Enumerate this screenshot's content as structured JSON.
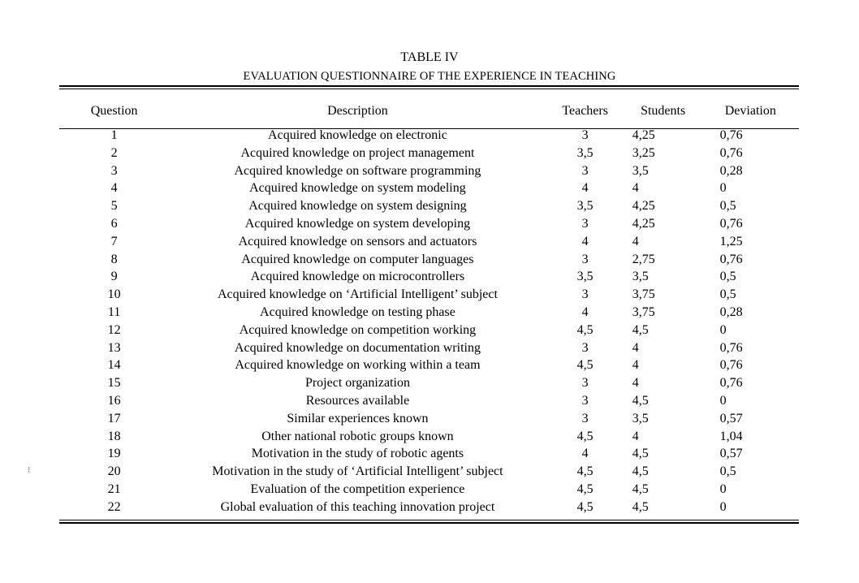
{
  "table_number": "TABLE IV",
  "table_title": "EVALUATION QUESTIONNAIRE OF THE EXPERIENCE IN TEACHING",
  "columns": [
    "Question",
    "Description",
    "Teachers",
    "Students",
    "Deviation"
  ],
  "rows": [
    [
      "1",
      "Acquired knowledge on electronic",
      "3",
      "4,25",
      "0,76"
    ],
    [
      "2",
      "Acquired knowledge on project management",
      "3,5",
      "3,25",
      "0,76"
    ],
    [
      "3",
      "Acquired knowledge on software programming",
      "3",
      "3,5",
      "0,28"
    ],
    [
      "4",
      "Acquired knowledge on system modeling",
      "4",
      "4",
      "0"
    ],
    [
      "5",
      "Acquired knowledge on system designing",
      "3,5",
      "4,25",
      "0,5"
    ],
    [
      "6",
      "Acquired knowledge on system developing",
      "3",
      "4,25",
      "0,76"
    ],
    [
      "7",
      "Acquired knowledge on sensors and actuators",
      "4",
      "4",
      "1,25"
    ],
    [
      "8",
      "Acquired knowledge on computer languages",
      "3",
      "2,75",
      "0,76"
    ],
    [
      "9",
      "Acquired knowledge on microcontrollers",
      "3,5",
      "3,5",
      "0,5"
    ],
    [
      "10",
      "Acquired knowledge on ‘Artificial Intelligent’ subject",
      "3",
      "3,75",
      "0,5"
    ],
    [
      "11",
      "Acquired knowledge on testing phase",
      "4",
      "3,75",
      "0,28"
    ],
    [
      "12",
      "Acquired knowledge on competition working",
      "4,5",
      "4,5",
      "0"
    ],
    [
      "13",
      "Acquired knowledge on documentation writing",
      "3",
      "4",
      "0,76"
    ],
    [
      "14",
      "Acquired knowledge on working within a team",
      "4,5",
      "4",
      "0,76"
    ],
    [
      "15",
      "Project organization",
      "3",
      "4",
      "0,76"
    ],
    [
      "16",
      "Resources available",
      "3",
      "4,5",
      "0"
    ],
    [
      "17",
      "Similar experiences known",
      "3",
      "3,5",
      "0,57"
    ],
    [
      "18",
      "Other national robotic groups known",
      "4,5",
      "4",
      "1,04"
    ],
    [
      "19",
      "Motivation in the study of robotic agents",
      "4",
      "4,5",
      "0,57"
    ],
    [
      "20",
      "Motivation in the study of ‘Artificial Intelligent’ subject",
      "4,5",
      "4,5",
      "0,5"
    ],
    [
      "21",
      "Evaluation of the competition experience",
      "4,5",
      "4,5",
      "0"
    ],
    [
      "22",
      "Global evaluation of this teaching innovation project",
      "4,5",
      "4,5",
      "0"
    ]
  ],
  "side_mark": "⁝"
}
